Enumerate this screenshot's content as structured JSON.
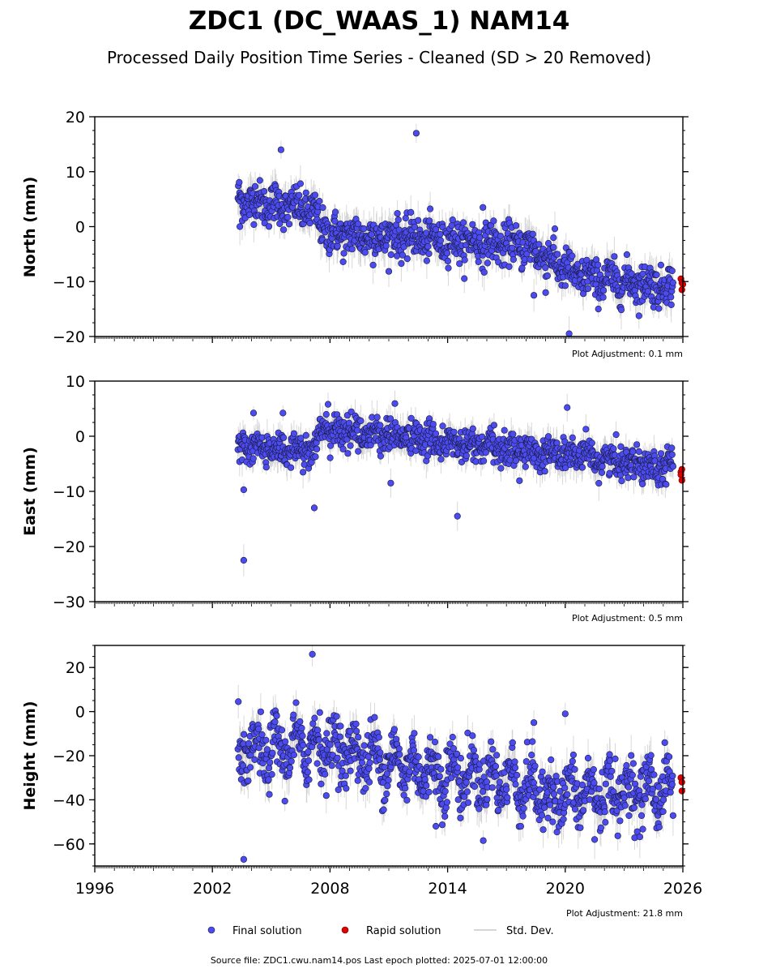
{
  "title": "ZDC1 (DC_WAAS_1) NAM14",
  "subtitle": "Processed Daily Position Time Series - Cleaned (SD > 20 Removed)",
  "source_text": "Source file: ZDC1.cwu.nam14.pos  Last epoch plotted: 2025-07-01 12:00:00",
  "legend": {
    "final": "Final solution",
    "rapid": "Rapid solution",
    "std": "Std. Dev."
  },
  "colors": {
    "final_fill": "#4b4bf0",
    "final_edge": "#1a1a40",
    "rapid": "#e00000",
    "errorbar": "#c8c8c8"
  },
  "chart_data": [
    {
      "type": "scatter",
      "name": "north",
      "ylabel": "North (mm)",
      "ylim": [
        -20,
        20
      ],
      "yticks": [
        20,
        10,
        0,
        -10,
        -20
      ],
      "xlim": [
        1996,
        2026
      ],
      "xtick_labels_shown": false,
      "adjustment": "Plot Adjustment: 0.1 mm",
      "final_trend": [
        [
          2003.3,
          5
        ],
        [
          2007.0,
          3
        ],
        [
          2008.0,
          -1.5
        ],
        [
          2012.0,
          -2
        ],
        [
          2018.0,
          -3.5
        ],
        [
          2019.3,
          -6
        ],
        [
          2020.5,
          -9
        ],
        [
          2025.5,
          -11
        ]
      ],
      "spread": 1.8,
      "err": 1.8,
      "outliers": [
        [
          2003.4,
          0
        ],
        [
          2005.5,
          14
        ],
        [
          2012.4,
          17
        ],
        [
          2018.4,
          -12.5
        ],
        [
          2019.0,
          -12
        ],
        [
          2020.2,
          -19.5
        ],
        [
          2019.4,
          -2
        ],
        [
          2010.2,
          -7
        ],
        [
          2015.8,
          3.5
        ]
      ],
      "rapid": [
        [
          2025.55,
          -9.5
        ],
        [
          2025.6,
          -10.2
        ],
        [
          2025.65,
          -10.5
        ],
        [
          2025.6,
          -11.5
        ]
      ]
    },
    {
      "type": "scatter",
      "name": "east",
      "ylabel": "East (mm)",
      "ylim": [
        -30,
        10
      ],
      "yticks": [
        10,
        0,
        -10,
        -20,
        -30
      ],
      "xlim": [
        1996,
        2026
      ],
      "xtick_labels_shown": false,
      "adjustment": "Plot Adjustment: 0.5 mm",
      "final_trend": [
        [
          2003.3,
          -2
        ],
        [
          2007.2,
          -2.5
        ],
        [
          2007.4,
          1
        ],
        [
          2010.5,
          0.5
        ],
        [
          2014.5,
          -1.5
        ],
        [
          2019.0,
          -3
        ],
        [
          2025.5,
          -5.5
        ]
      ],
      "spread": 1.5,
      "err": 1.6,
      "outliers": [
        [
          2003.6,
          -22.5
        ],
        [
          2003.6,
          -9.7
        ],
        [
          2007.2,
          -13
        ],
        [
          2014.5,
          -14.5
        ],
        [
          2020.1,
          5.2
        ],
        [
          2004.1,
          4.2
        ],
        [
          2005.6,
          4.2
        ],
        [
          2007.9,
          5.8
        ],
        [
          2011.1,
          -8.5
        ]
      ],
      "rapid": [
        [
          2025.55,
          -6.5
        ],
        [
          2025.6,
          -6
        ],
        [
          2025.55,
          -7
        ],
        [
          2025.6,
          -8
        ]
      ]
    },
    {
      "type": "scatter",
      "name": "height",
      "ylabel": "Height (mm)",
      "ylim": [
        -70,
        30
      ],
      "yticks": [
        20,
        0,
        -20,
        -40,
        -60
      ],
      "xlim": [
        1996,
        2026
      ],
      "xticks": [
        1996,
        2002,
        2008,
        2014,
        2020,
        2026
      ],
      "adjustment": "Plot Adjustment: 21.8 mm",
      "final_trend": [
        [
          2003.3,
          -20
        ],
        [
          2007.5,
          -15
        ],
        [
          2013.0,
          -27
        ],
        [
          2017.5,
          -32
        ],
        [
          2019.0,
          -38
        ],
        [
          2025.5,
          -35
        ]
      ],
      "spread": 6.5,
      "err": 5,
      "outliers": [
        [
          2003.6,
          -67
        ],
        [
          2007.1,
          26
        ],
        [
          2018.4,
          -5
        ],
        [
          2020.0,
          -1
        ],
        [
          2013.4,
          -52
        ],
        [
          2021.5,
          -58
        ]
      ],
      "rapid": [
        [
          2025.55,
          -30
        ],
        [
          2025.6,
          -32
        ],
        [
          2025.6,
          -36
        ]
      ]
    }
  ]
}
